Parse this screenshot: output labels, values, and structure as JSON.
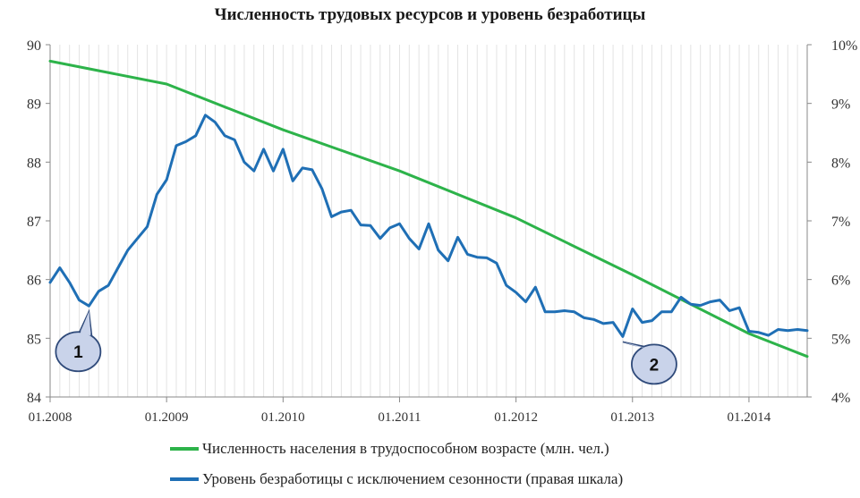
{
  "chart_data": {
    "type": "line",
    "title": "Численность трудовых ресурсов и уровень безработицы",
    "x_tick_labels": [
      "01.2008",
      "01.2009",
      "01.2010",
      "01.2011",
      "01.2012",
      "01.2013",
      "01.2014"
    ],
    "y_left": {
      "range": [
        84,
        90
      ],
      "ticks": [
        "84",
        "85",
        "86",
        "87",
        "88",
        "89",
        "90"
      ]
    },
    "y_right": {
      "range": [
        4,
        10
      ],
      "ticks": [
        "4%",
        "5%",
        "6%",
        "7%",
        "8%",
        "9%",
        "10%"
      ]
    },
    "grid": "vertical-monthly",
    "legend_position": "bottom",
    "series": [
      {
        "name": "Численность населения в трудоспособном возрасте (млн. чел.)",
        "axis": "left",
        "color": "#2db34a",
        "points": [
          [
            "01.2008",
            89.72
          ],
          [
            "01.2009",
            89.33
          ],
          [
            "01.2010",
            88.55
          ],
          [
            "01.2011",
            87.85
          ],
          [
            "01.2012",
            87.05
          ],
          [
            "01.2013",
            86.08
          ],
          [
            "01.2014",
            85.08
          ],
          [
            "07.2014",
            84.69
          ]
        ]
      },
      {
        "name": "Уровень безработицы с исключением сезонности (правая шкала)",
        "axis": "right",
        "color": "#1f6fb5",
        "points": [
          [
            "01.2008",
            5.95
          ],
          [
            "02.2008",
            6.2
          ],
          [
            "03.2008",
            5.95
          ],
          [
            "04.2008",
            5.65
          ],
          [
            "05.2008",
            5.55
          ],
          [
            "06.2008",
            5.8
          ],
          [
            "07.2008",
            5.9
          ],
          [
            "08.2008",
            6.2
          ],
          [
            "09.2008",
            6.5
          ],
          [
            "10.2008",
            6.7
          ],
          [
            "11.2008",
            6.9
          ],
          [
            "12.2008",
            7.45
          ],
          [
            "01.2009",
            7.7
          ],
          [
            "02.2009",
            8.28
          ],
          [
            "03.2009",
            8.35
          ],
          [
            "04.2009",
            8.45
          ],
          [
            "05.2009",
            8.8
          ],
          [
            "06.2009",
            8.68
          ],
          [
            "07.2009",
            8.45
          ],
          [
            "08.2009",
            8.38
          ],
          [
            "09.2009",
            8.0
          ],
          [
            "10.2009",
            7.85
          ],
          [
            "11.2009",
            8.22
          ],
          [
            "12.2009",
            7.85
          ],
          [
            "01.2010",
            8.22
          ],
          [
            "02.2010",
            7.68
          ],
          [
            "03.2010",
            7.9
          ],
          [
            "04.2010",
            7.87
          ],
          [
            "05.2010",
            7.55
          ],
          [
            "06.2010",
            7.07
          ],
          [
            "07.2010",
            7.15
          ],
          [
            "08.2010",
            7.18
          ],
          [
            "09.2010",
            6.93
          ],
          [
            "10.2010",
            6.92
          ],
          [
            "11.2010",
            6.7
          ],
          [
            "12.2010",
            6.88
          ],
          [
            "01.2011",
            6.95
          ],
          [
            "02.2011",
            6.7
          ],
          [
            "03.2011",
            6.52
          ],
          [
            "04.2011",
            6.95
          ],
          [
            "05.2011",
            6.5
          ],
          [
            "06.2011",
            6.32
          ],
          [
            "07.2011",
            6.72
          ],
          [
            "08.2011",
            6.43
          ],
          [
            "09.2011",
            6.38
          ],
          [
            "10.2011",
            6.37
          ],
          [
            "11.2011",
            6.28
          ],
          [
            "12.2011",
            5.9
          ],
          [
            "01.2012",
            5.78
          ],
          [
            "02.2012",
            5.62
          ],
          [
            "03.2012",
            5.87
          ],
          [
            "04.2012",
            5.45
          ],
          [
            "05.2012",
            5.45
          ],
          [
            "06.2012",
            5.47
          ],
          [
            "07.2012",
            5.45
          ],
          [
            "08.2012",
            5.35
          ],
          [
            "09.2012",
            5.32
          ],
          [
            "10.2012",
            5.25
          ],
          [
            "11.2012",
            5.27
          ],
          [
            "12.2012",
            5.03
          ],
          [
            "01.2013",
            5.5
          ],
          [
            "02.2013",
            5.27
          ],
          [
            "03.2013",
            5.3
          ],
          [
            "04.2013",
            5.45
          ],
          [
            "05.2013",
            5.45
          ],
          [
            "06.2013",
            5.7
          ],
          [
            "07.2013",
            5.58
          ],
          [
            "08.2013",
            5.56
          ],
          [
            "09.2013",
            5.62
          ],
          [
            "10.2013",
            5.65
          ],
          [
            "11.2013",
            5.47
          ],
          [
            "12.2013",
            5.52
          ],
          [
            "01.2014",
            5.12
          ],
          [
            "02.2014",
            5.1
          ],
          [
            "03.2014",
            5.05
          ],
          [
            "04.2014",
            5.15
          ],
          [
            "05.2014",
            5.13
          ],
          [
            "06.2014",
            5.15
          ],
          [
            "07.2014",
            5.13
          ]
        ]
      }
    ],
    "annotations": [
      {
        "label": "1",
        "at": "05.2008"
      },
      {
        "label": "2",
        "at": "12.2012"
      }
    ]
  },
  "legend": {
    "item1": "Численность населения в трудоспособном возрасте (млн. чел.)",
    "item2": "Уровень безработицы с исключением сезонности (правая шкала)"
  }
}
